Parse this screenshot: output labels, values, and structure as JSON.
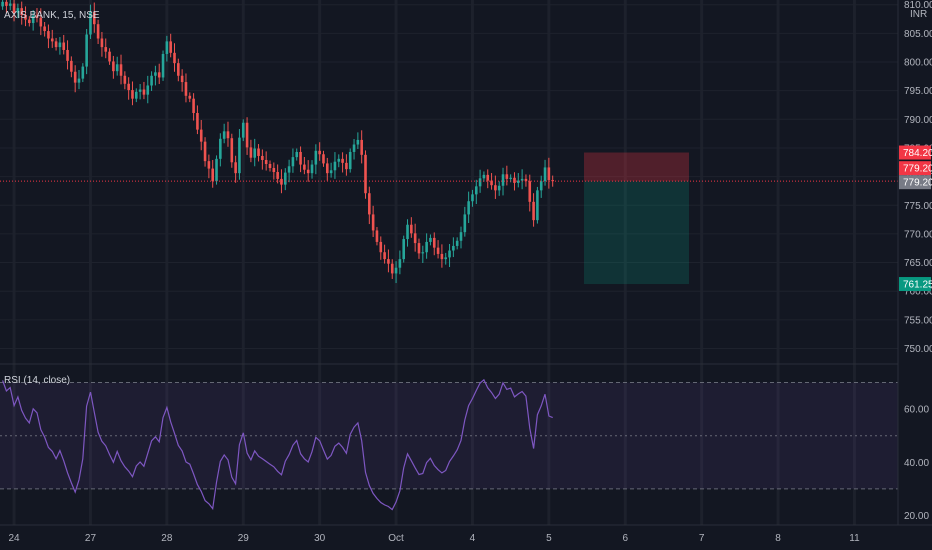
{
  "chart_data": [
    {
      "type": "candlestick",
      "title": "AXIS BANK, 15, NSE",
      "currency": "INR",
      "y_ticks": [
        750,
        755,
        760,
        765,
        770,
        775,
        780,
        785,
        790,
        795,
        800,
        805,
        810
      ],
      "ylim": [
        746,
        812
      ],
      "x_ticks": [
        {
          "label": "24",
          "bar": 3
        },
        {
          "label": "27",
          "bar": 23
        },
        {
          "label": "28",
          "bar": 43
        },
        {
          "label": "29",
          "bar": 63
        },
        {
          "label": "30",
          "bar": 83
        },
        {
          "label": "Oct",
          "bar": 103
        },
        {
          "label": "4",
          "bar": 123
        },
        {
          "label": "5",
          "bar": 143
        },
        {
          "label": "6",
          "bar": 163
        },
        {
          "label": "7",
          "bar": 183
        },
        {
          "label": "8",
          "bar": 203
        },
        {
          "label": "11",
          "bar": 223
        }
      ],
      "bar_closes": [
        810.5,
        809.8,
        810.2,
        808.6,
        809.4,
        808.2,
        807.4,
        806.8,
        808.1,
        807.7,
        806.2,
        805.4,
        804.1,
        803.6,
        802.6,
        803.4,
        802.1,
        800.2,
        798.3,
        796.4,
        797.1,
        799.2,
        804.8,
        808.7,
        806.6,
        804.1,
        802.6,
        801.8,
        800.1,
        798.4,
        799.6,
        797.6,
        796.2,
        795.1,
        793.6,
        794.8,
        795.2,
        794.3,
        795.9,
        797.6,
        798.2,
        797.3,
        801.4,
        803.6,
        801.6,
        799.8,
        797.6,
        796.5,
        794.1,
        793.6,
        791.1,
        788.2,
        786.1,
        782.7,
        781.4,
        779.2,
        783.1,
        786.6,
        787.9,
        786.7,
        782.5,
        780.6,
        786.8,
        789.4,
        785.1,
        783.3,
        784.9,
        783.6,
        782.9,
        782.2,
        781.5,
        780.8,
        779.6,
        778.6,
        780.7,
        781.8,
        783.4,
        784.3,
        782.1,
        781.2,
        780.6,
        782.1,
        784.5,
        783.9,
        782.3,
        780.6,
        781.1,
        782.6,
        783.1,
        782.4,
        781.3,
        784.3,
        785.6,
        786.4,
        783.8,
        777.1,
        773.4,
        770.6,
        768.6,
        766.8,
        765.6,
        764.8,
        763.1,
        764.1,
        765.6,
        769.1,
        771.6,
        770.1,
        768.4,
        766.6,
        766.8,
        768.6,
        769.3,
        767.6,
        766.5,
        765.6,
        765.9,
        767.1,
        767.9,
        768.8,
        770.3,
        773.4,
        775.7,
        776.9,
        778.3,
        779.7,
        780.3,
        779.3,
        778.5,
        777.6,
        778.4,
        780.4,
        779.6,
        779.8,
        778.9,
        779.3,
        779.6,
        779.2,
        775.6,
        772.4,
        777.6,
        779.2,
        781.6,
        779.4,
        779.2
      ],
      "current_price": 779.2,
      "position": {
        "entry": "779.20",
        "stop": "784.20",
        "target": "761.25"
      },
      "indicator": {
        "name": "RSI (14, close)",
        "y_ticks": [
          20,
          40,
          60
        ],
        "ylim": [
          15,
          75
        ],
        "band": [
          30,
          70
        ],
        "middle": 50,
        "values": [
          70.8,
          66.8,
          68.1,
          61.3,
          64.6,
          59.5,
          56.6,
          54.8,
          60.1,
          58.6,
          52.3,
          49.5,
          45.6,
          44.1,
          41.3,
          44.4,
          40.6,
          36.1,
          32.2,
          28.8,
          33.4,
          41.3,
          61.1,
          66.4,
          58.8,
          51.3,
          47.9,
          46.2,
          42.9,
          40.0,
          44.1,
          40.6,
          38.3,
          36.7,
          34.6,
          38.6,
          40.1,
          38.5,
          43.4,
          48.1,
          49.6,
          47.7,
          56.8,
          60.6,
          55.2,
          50.9,
          46.4,
          44.3,
          40.1,
          39.3,
          35.6,
          31.6,
          29.1,
          25.6,
          24.4,
          22.6,
          32.5,
          40.3,
          42.8,
          40.9,
          34.4,
          31.9,
          46.6,
          51.1,
          43.5,
          40.9,
          44.3,
          42.3,
          41.3,
          40.3,
          39.3,
          38.3,
          36.6,
          35.3,
          40.4,
          42.9,
          46.4,
          48.2,
          43.2,
          41.3,
          40.1,
          44.0,
          49.4,
          48.1,
          44.6,
          41.2,
          42.6,
          46.0,
          47.2,
          45.6,
          43.4,
          50.5,
          53.2,
          54.8,
          48.1,
          36.2,
          31.3,
          28.3,
          26.4,
          24.9,
          24.0,
          23.4,
          22.2,
          25.1,
          29.3,
          37.9,
          43.2,
          40.6,
          37.9,
          35.4,
          35.8,
          39.9,
          41.5,
          38.8,
          37.2,
          36.0,
          36.9,
          40.3,
          42.4,
          44.7,
          48.2,
          55.9,
          61.3,
          64.0,
          67.0,
          69.8,
          71.0,
          68.0,
          66.2,
          64.0,
          65.6,
          69.9,
          67.4,
          67.9,
          64.6,
          65.7,
          66.6,
          64.9,
          52.8,
          45.2,
          57.9,
          61.2,
          65.6,
          57.4,
          56.8
        ]
      }
    }
  ],
  "tags": {
    "stop_color": "#f23645",
    "target_color": "#089981",
    "last_price_color": "#787b86",
    "up_color": "#26a69a",
    "down_color": "#ef5350",
    "rsi_color": "#7e57c2"
  }
}
